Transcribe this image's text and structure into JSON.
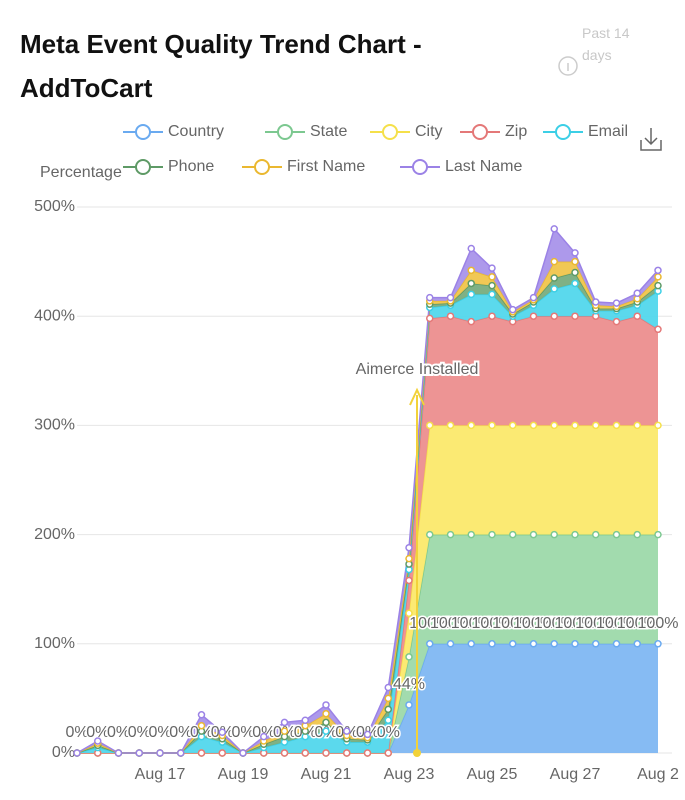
{
  "chart_data": {
    "type": "stacked_area",
    "title": "Meta Event Quality Trend Chart - AddToCart",
    "range_label": "Past 14 days",
    "y_label": "Percentage",
    "annotation": "Aimerce Installed",
    "legend_position": "top",
    "grid": true,
    "categories": [
      null,
      null,
      null,
      null,
      "Aug 17",
      null,
      null,
      null,
      "Aug 19",
      null,
      null,
      null,
      "Aug 21",
      null,
      null,
      null,
      "Aug 23",
      null,
      null,
      null,
      "Aug 25",
      null,
      null,
      null,
      "Aug 27",
      null,
      null,
      null,
      "Aug 2"
    ],
    "ylim": [
      0,
      500
    ],
    "yticks": [
      {
        "value": 0,
        "label": "0%"
      },
      {
        "value": 100,
        "label": "100%"
      },
      {
        "value": 200,
        "label": "200%"
      },
      {
        "value": 300,
        "label": "300%"
      },
      {
        "value": 400,
        "label": "400%"
      },
      {
        "value": 500,
        "label": "500%"
      }
    ],
    "series": [
      {
        "name": "Country",
        "color": "#6aaaf0",
        "fill": "#7fb7f2",
        "values": [
          0,
          0,
          0,
          0,
          0,
          0,
          0,
          0,
          0,
          0,
          0,
          0,
          0,
          0,
          0,
          0,
          44,
          100,
          100,
          100,
          100,
          100,
          100,
          100,
          100,
          100,
          100,
          100,
          100
        ],
        "value_labels": [
          "0%",
          "0%",
          "0%",
          "0%",
          "0%",
          "0%",
          "0%",
          "0%",
          "0%",
          "0%",
          "0%",
          "0%",
          "0%",
          "0%",
          "0%",
          "0%",
          "44%",
          "100%",
          "100%",
          "100%",
          "100%",
          "100%",
          "100%",
          "100%",
          "100%",
          "100%",
          "100%",
          "100%",
          "100%"
        ]
      },
      {
        "name": "State",
        "color": "#7cc890",
        "fill": "#9dd9aa",
        "values": [
          0,
          0,
          0,
          0,
          0,
          0,
          0,
          0,
          0,
          0,
          0,
          0,
          0,
          0,
          0,
          0,
          44,
          100,
          100,
          100,
          100,
          100,
          100,
          100,
          100,
          100,
          100,
          100,
          100
        ]
      },
      {
        "name": "City",
        "color": "#f5e04a",
        "fill": "#fbe96c",
        "values": [
          0,
          0,
          0,
          0,
          0,
          0,
          0,
          0,
          0,
          0,
          0,
          0,
          0,
          0,
          0,
          0,
          40,
          100,
          100,
          100,
          100,
          100,
          100,
          100,
          100,
          100,
          100,
          100,
          100
        ]
      },
      {
        "name": "Zip",
        "color": "#e47878",
        "fill": "#ec8e8e",
        "values": [
          0,
          0,
          0,
          0,
          0,
          0,
          0,
          0,
          0,
          0,
          0,
          0,
          0,
          0,
          0,
          0,
          30,
          98,
          100,
          95,
          100,
          95,
          100,
          100,
          100,
          100,
          95,
          100,
          88
        ]
      },
      {
        "name": "Email",
        "color": "#3ccfe6",
        "fill": "#52d7ec",
        "values": [
          0,
          5,
          0,
          0,
          0,
          0,
          15,
          10,
          0,
          5,
          10,
          15,
          20,
          10,
          10,
          30,
          10,
          10,
          10,
          25,
          20,
          5,
          10,
          25,
          30,
          5,
          10,
          10,
          35
        ]
      },
      {
        "name": "Phone",
        "color": "#5e9a66",
        "fill": "#78ad7e",
        "values": [
          0,
          2,
          0,
          0,
          0,
          0,
          5,
          3,
          0,
          3,
          5,
          5,
          8,
          3,
          2,
          10,
          5,
          3,
          2,
          10,
          8,
          2,
          3,
          10,
          10,
          2,
          2,
          3,
          5
        ]
      },
      {
        "name": "First Name",
        "color": "#eab830",
        "fill": "#f0c54c",
        "values": [
          0,
          2,
          0,
          0,
          0,
          0,
          5,
          3,
          0,
          3,
          5,
          5,
          8,
          3,
          2,
          10,
          5,
          3,
          2,
          12,
          8,
          2,
          2,
          15,
          10,
          3,
          2,
          3,
          8
        ]
      },
      {
        "name": "Last Name",
        "color": "#9b82e6",
        "fill": "#a993ea",
        "values": [
          0,
          2,
          0,
          0,
          0,
          0,
          10,
          3,
          0,
          4,
          8,
          5,
          8,
          4,
          3,
          10,
          10,
          3,
          3,
          20,
          8,
          2,
          2,
          30,
          8,
          3,
          3,
          5,
          6
        ]
      }
    ]
  }
}
